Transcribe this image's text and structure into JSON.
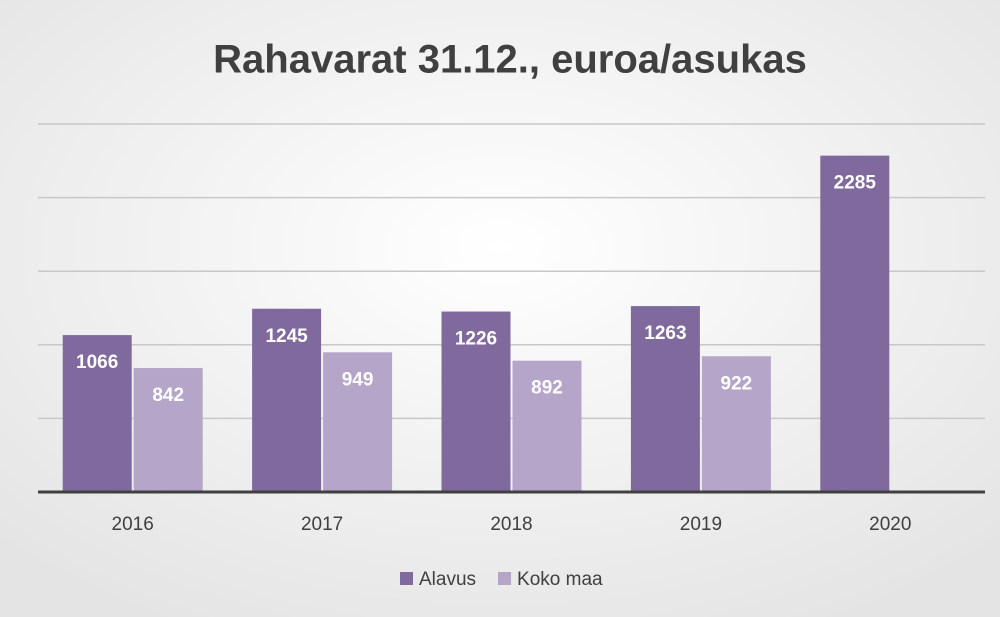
{
  "chart_data": {
    "type": "bar",
    "title": "Rahavarat 31.12., euroa/asukas",
    "categories": [
      "2016",
      "2017",
      "2018",
      "2019",
      "2020"
    ],
    "series": [
      {
        "name": "Alavus",
        "color": "#806a9d",
        "values": [
          1066,
          1245,
          1226,
          1263,
          2285
        ]
      },
      {
        "name": "Koko maa",
        "color": "#b4a5c9",
        "values": [
          842,
          949,
          892,
          922,
          null
        ]
      }
    ],
    "ylim": [
      0,
      2500
    ],
    "yticks": [
      0,
      500,
      1000,
      1500,
      2000,
      2500
    ],
    "grid": true,
    "legend": "bottom"
  }
}
